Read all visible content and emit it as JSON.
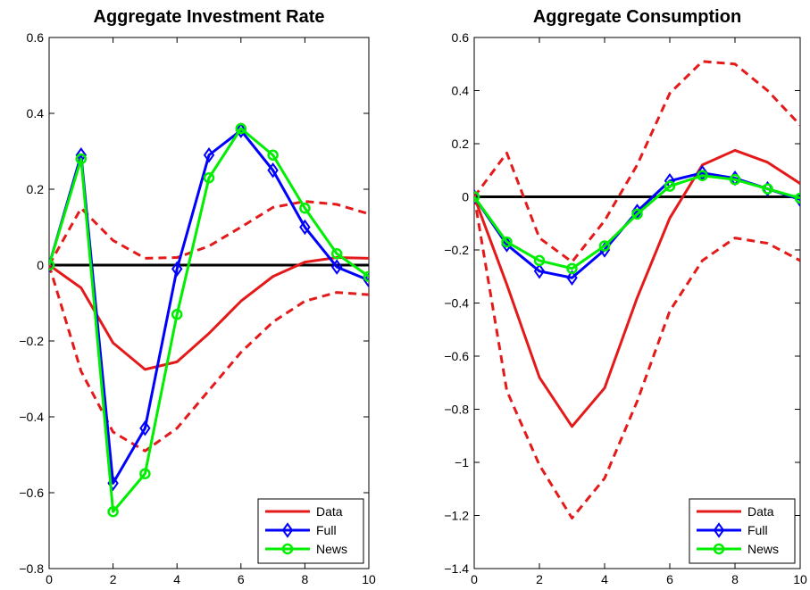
{
  "chart_data": [
    {
      "type": "line",
      "title": "Aggregate Investment Rate",
      "xlabel": "",
      "ylabel": "",
      "xlim": [
        0,
        10
      ],
      "ylim": [
        -0.8,
        0.6
      ],
      "xticks": [
        0,
        2,
        4,
        6,
        8,
        10
      ],
      "yticks": [
        -0.8,
        -0.6,
        -0.4,
        -0.2,
        0,
        0.2,
        0.4,
        0.6
      ],
      "xtick_labels": [
        "0",
        "2",
        "4",
        "6",
        "8",
        "10"
      ],
      "ytick_labels": [
        "−0.8",
        "−0.6",
        "−0.4",
        "−0.2",
        "0",
        "0.2",
        "0.4",
        "0.6"
      ],
      "grid": false,
      "legend_position": "bottom-right",
      "zero_line": {
        "value": 0,
        "color": "#000000"
      },
      "x": [
        0,
        1,
        2,
        3,
        4,
        5,
        6,
        7,
        8,
        9,
        10
      ],
      "series": [
        {
          "name": "Data",
          "role": "line",
          "color": "#e41a1a",
          "style": "solid",
          "marker": "none",
          "values": [
            0,
            -0.06,
            -0.205,
            -0.275,
            -0.255,
            -0.18,
            -0.095,
            -0.03,
            0.008,
            0.02,
            0.018
          ]
        },
        {
          "name": "",
          "role": "band-upper",
          "color": "#e41a1a",
          "style": "dashed",
          "marker": "none",
          "values": [
            0,
            0.15,
            0.065,
            0.018,
            0.02,
            0.05,
            0.1,
            0.152,
            0.168,
            0.16,
            0.135
          ]
        },
        {
          "name": "",
          "role": "band-lower",
          "color": "#e41a1a",
          "style": "dashed",
          "marker": "none",
          "values": [
            0,
            -0.28,
            -0.44,
            -0.49,
            -0.43,
            -0.33,
            -0.23,
            -0.15,
            -0.095,
            -0.072,
            -0.078
          ]
        },
        {
          "name": "Full",
          "role": "line",
          "color": "#0000ff",
          "style": "solid",
          "marker": "diamond",
          "values": [
            0,
            0.29,
            -0.575,
            -0.43,
            -0.01,
            0.29,
            0.355,
            0.25,
            0.1,
            -0.005,
            -0.04
          ]
        },
        {
          "name": "News",
          "role": "line",
          "color": "#00ee00",
          "style": "solid",
          "marker": "circle",
          "values": [
            0,
            0.28,
            -0.65,
            -0.55,
            -0.13,
            0.23,
            0.36,
            0.29,
            0.15,
            0.03,
            -0.03
          ]
        }
      ],
      "legend": [
        {
          "label": "Data",
          "color": "#e41a1a",
          "marker": "none"
        },
        {
          "label": "Full",
          "color": "#0000ff",
          "marker": "diamond"
        },
        {
          "label": "News",
          "color": "#00ee00",
          "marker": "circle"
        }
      ]
    },
    {
      "type": "line",
      "title": "Aggregate Consumption",
      "xlabel": "",
      "ylabel": "",
      "xlim": [
        0,
        10
      ],
      "ylim": [
        -1.4,
        0.6
      ],
      "xticks": [
        0,
        2,
        4,
        6,
        8,
        10
      ],
      "yticks": [
        -1.4,
        -1.2,
        -1,
        -0.8,
        -0.6,
        -0.4,
        -0.2,
        0,
        0.2,
        0.4,
        0.6
      ],
      "xtick_labels": [
        "0",
        "2",
        "4",
        "6",
        "8",
        "10"
      ],
      "ytick_labels": [
        "−1.4",
        "−1.2",
        "−1",
        "−0.8",
        "−0.6",
        "−0.4",
        "−0.2",
        "0",
        "0.2",
        "0.4",
        "0.6"
      ],
      "grid": false,
      "legend_position": "bottom-right",
      "zero_line": {
        "value": 0,
        "color": "#000000"
      },
      "x": [
        0,
        1,
        2,
        3,
        4,
        5,
        6,
        7,
        8,
        9,
        10
      ],
      "series": [
        {
          "name": "Data",
          "role": "line",
          "color": "#e41a1a",
          "style": "solid",
          "marker": "none",
          "values": [
            0,
            -0.33,
            -0.68,
            -0.865,
            -0.72,
            -0.38,
            -0.08,
            0.12,
            0.175,
            0.13,
            0.05
          ]
        },
        {
          "name": "",
          "role": "band-upper",
          "color": "#e41a1a",
          "style": "dashed",
          "marker": "none",
          "values": [
            0,
            0.165,
            -0.155,
            -0.245,
            -0.09,
            0.12,
            0.39,
            0.51,
            0.5,
            0.4,
            0.27
          ]
        },
        {
          "name": "",
          "role": "band-lower",
          "color": "#e41a1a",
          "style": "dashed",
          "marker": "none",
          "values": [
            0,
            -0.73,
            -1.01,
            -1.21,
            -1.06,
            -0.77,
            -0.43,
            -0.24,
            -0.155,
            -0.175,
            -0.24
          ]
        },
        {
          "name": "Full",
          "role": "line",
          "color": "#0000ff",
          "style": "solid",
          "marker": "diamond",
          "values": [
            0,
            -0.18,
            -0.28,
            -0.305,
            -0.2,
            -0.055,
            0.06,
            0.09,
            0.07,
            0.03,
            -0.01
          ]
        },
        {
          "name": "News",
          "role": "line",
          "color": "#00ee00",
          "style": "solid",
          "marker": "circle",
          "values": [
            0,
            -0.17,
            -0.24,
            -0.27,
            -0.185,
            -0.065,
            0.04,
            0.08,
            0.065,
            0.03,
            -0.005
          ]
        }
      ],
      "legend": [
        {
          "label": "Data",
          "color": "#e41a1a",
          "marker": "none"
        },
        {
          "label": "Full",
          "color": "#0000ff",
          "marker": "diamond"
        },
        {
          "label": "News",
          "color": "#00ee00",
          "marker": "circle"
        }
      ]
    }
  ]
}
